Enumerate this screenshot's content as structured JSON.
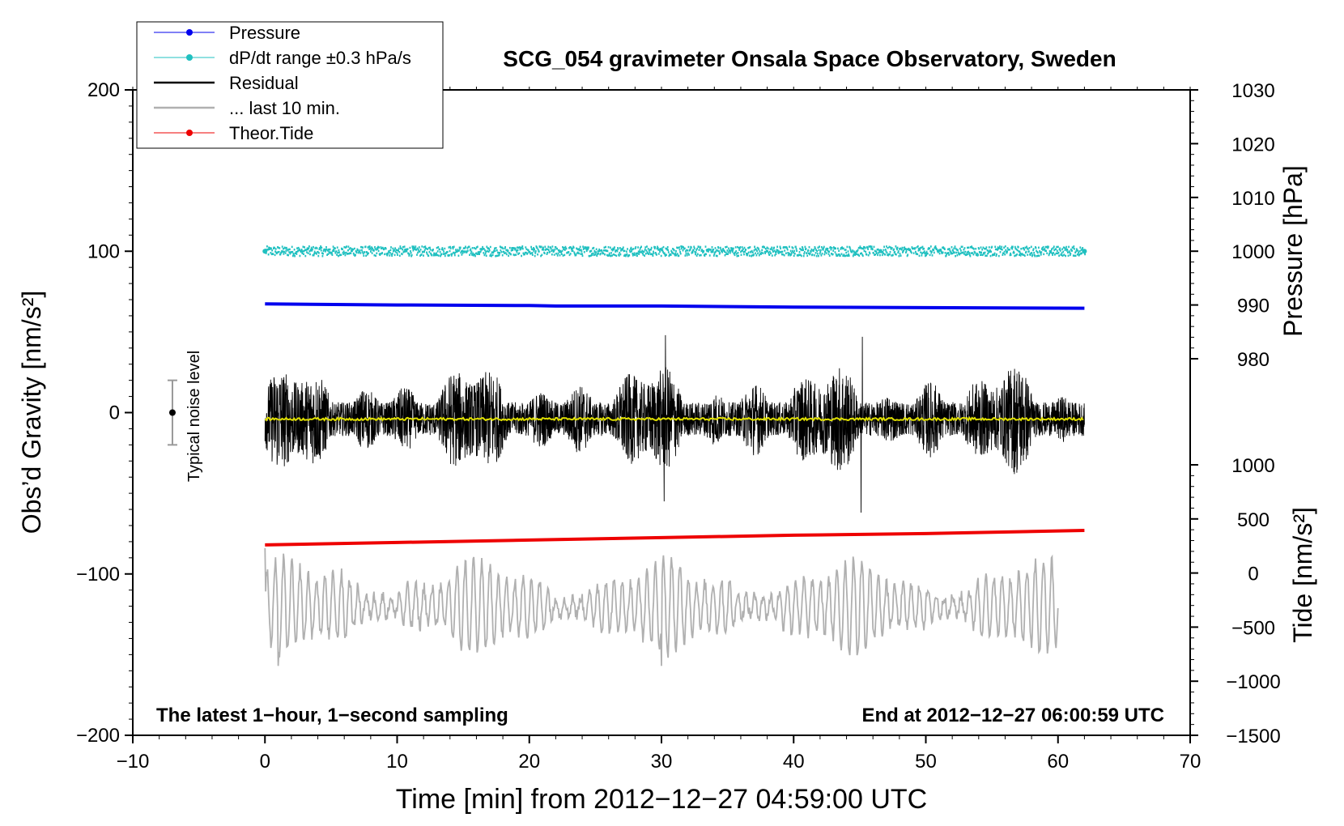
{
  "chart_data": {
    "type": "line",
    "title": "SCG_054 gravimeter Onsala Space Observatory, Sweden",
    "xlabel": "Time [min] from 2012−12−27 04:59:00 UTC",
    "ylabel_left": "Obs’d Gravity [nm/s²]",
    "ylabel_right_pressure": "Pressure [hPa]",
    "ylabel_right_tide": "Tide [nm/s²]",
    "xlim": [
      -10,
      70
    ],
    "ylim_left": [
      -200,
      200
    ],
    "pressure_range": [
      980,
      1030
    ],
    "tide_range": [
      -1500,
      1000
    ],
    "x_ticks": [
      "−10",
      "0",
      "10",
      "20",
      "30",
      "40",
      "50",
      "60",
      "70"
    ],
    "y_ticks_left": [
      "−200",
      "−100",
      "0",
      "100",
      "200"
    ],
    "y_ticks_pressure": [
      "980",
      "990",
      "1000",
      "1010",
      "1020",
      "1030"
    ],
    "y_ticks_tide": [
      "−1500",
      "−1000",
      "−500",
      "0",
      "500",
      "1000"
    ],
    "legend_position": "top-left",
    "legend": [
      "Pressure",
      "dP/dt range ±0.3 hPa/s",
      "Residual",
      "... last 10 min.",
      "Theor.Tide"
    ],
    "annotation_left": "The latest 1−hour, 1−second sampling",
    "annotation_right": "End at 2012−12−27 06:00:59 UTC",
    "noise_label": "Typical noise level",
    "noise_bar": {
      "x": -7,
      "center": 0,
      "half_range": 20
    },
    "grid": false,
    "colors": {
      "pressure": "#0000ee",
      "dpdt": "#20c0c0",
      "residual": "#000000",
      "last10": "#b0b0b0",
      "tide": "#ee0000",
      "residual_smooth": "#e0e000"
    },
    "series": [
      {
        "name": "Pressure",
        "axis": "pressure",
        "x": [
          0,
          10,
          20,
          22,
          30,
          40,
          50,
          62
        ],
        "y": [
          990.2,
          990.0,
          989.9,
          989.8,
          989.8,
          989.6,
          989.5,
          989.4
        ]
      },
      {
        "name": "dP/dt range ±0.3 hPa/s",
        "axis": "left",
        "x": [
          0,
          62
        ],
        "y": [
          100,
          100
        ],
        "spread": 3
      },
      {
        "name": "Residual",
        "axis": "left",
        "x": [
          0,
          62
        ],
        "y": [
          -4,
          -4
        ],
        "amplitude": 30,
        "extremes": [
          {
            "x": 30.2,
            "y": -55
          },
          {
            "x": 30.3,
            "y": 48
          },
          {
            "x": 45.1,
            "y": -62
          },
          {
            "x": 45.2,
            "y": 47
          }
        ]
      },
      {
        "name": "... last 10 min.",
        "axis": "left",
        "x": [
          0,
          60
        ],
        "y": [
          -120,
          -120
        ],
        "amplitude": 25,
        "extremes": [
          {
            "x": 0,
            "y": -84
          },
          {
            "x": 1,
            "y": -157
          },
          {
            "x": 30,
            "y": -157
          }
        ]
      },
      {
        "name": "Theor.Tide",
        "axis": "left",
        "x": [
          0,
          10,
          20,
          30,
          40,
          50,
          62
        ],
        "y": [
          -82,
          -80.5,
          -79,
          -77.5,
          -76,
          -75,
          -73
        ]
      }
    ]
  }
}
